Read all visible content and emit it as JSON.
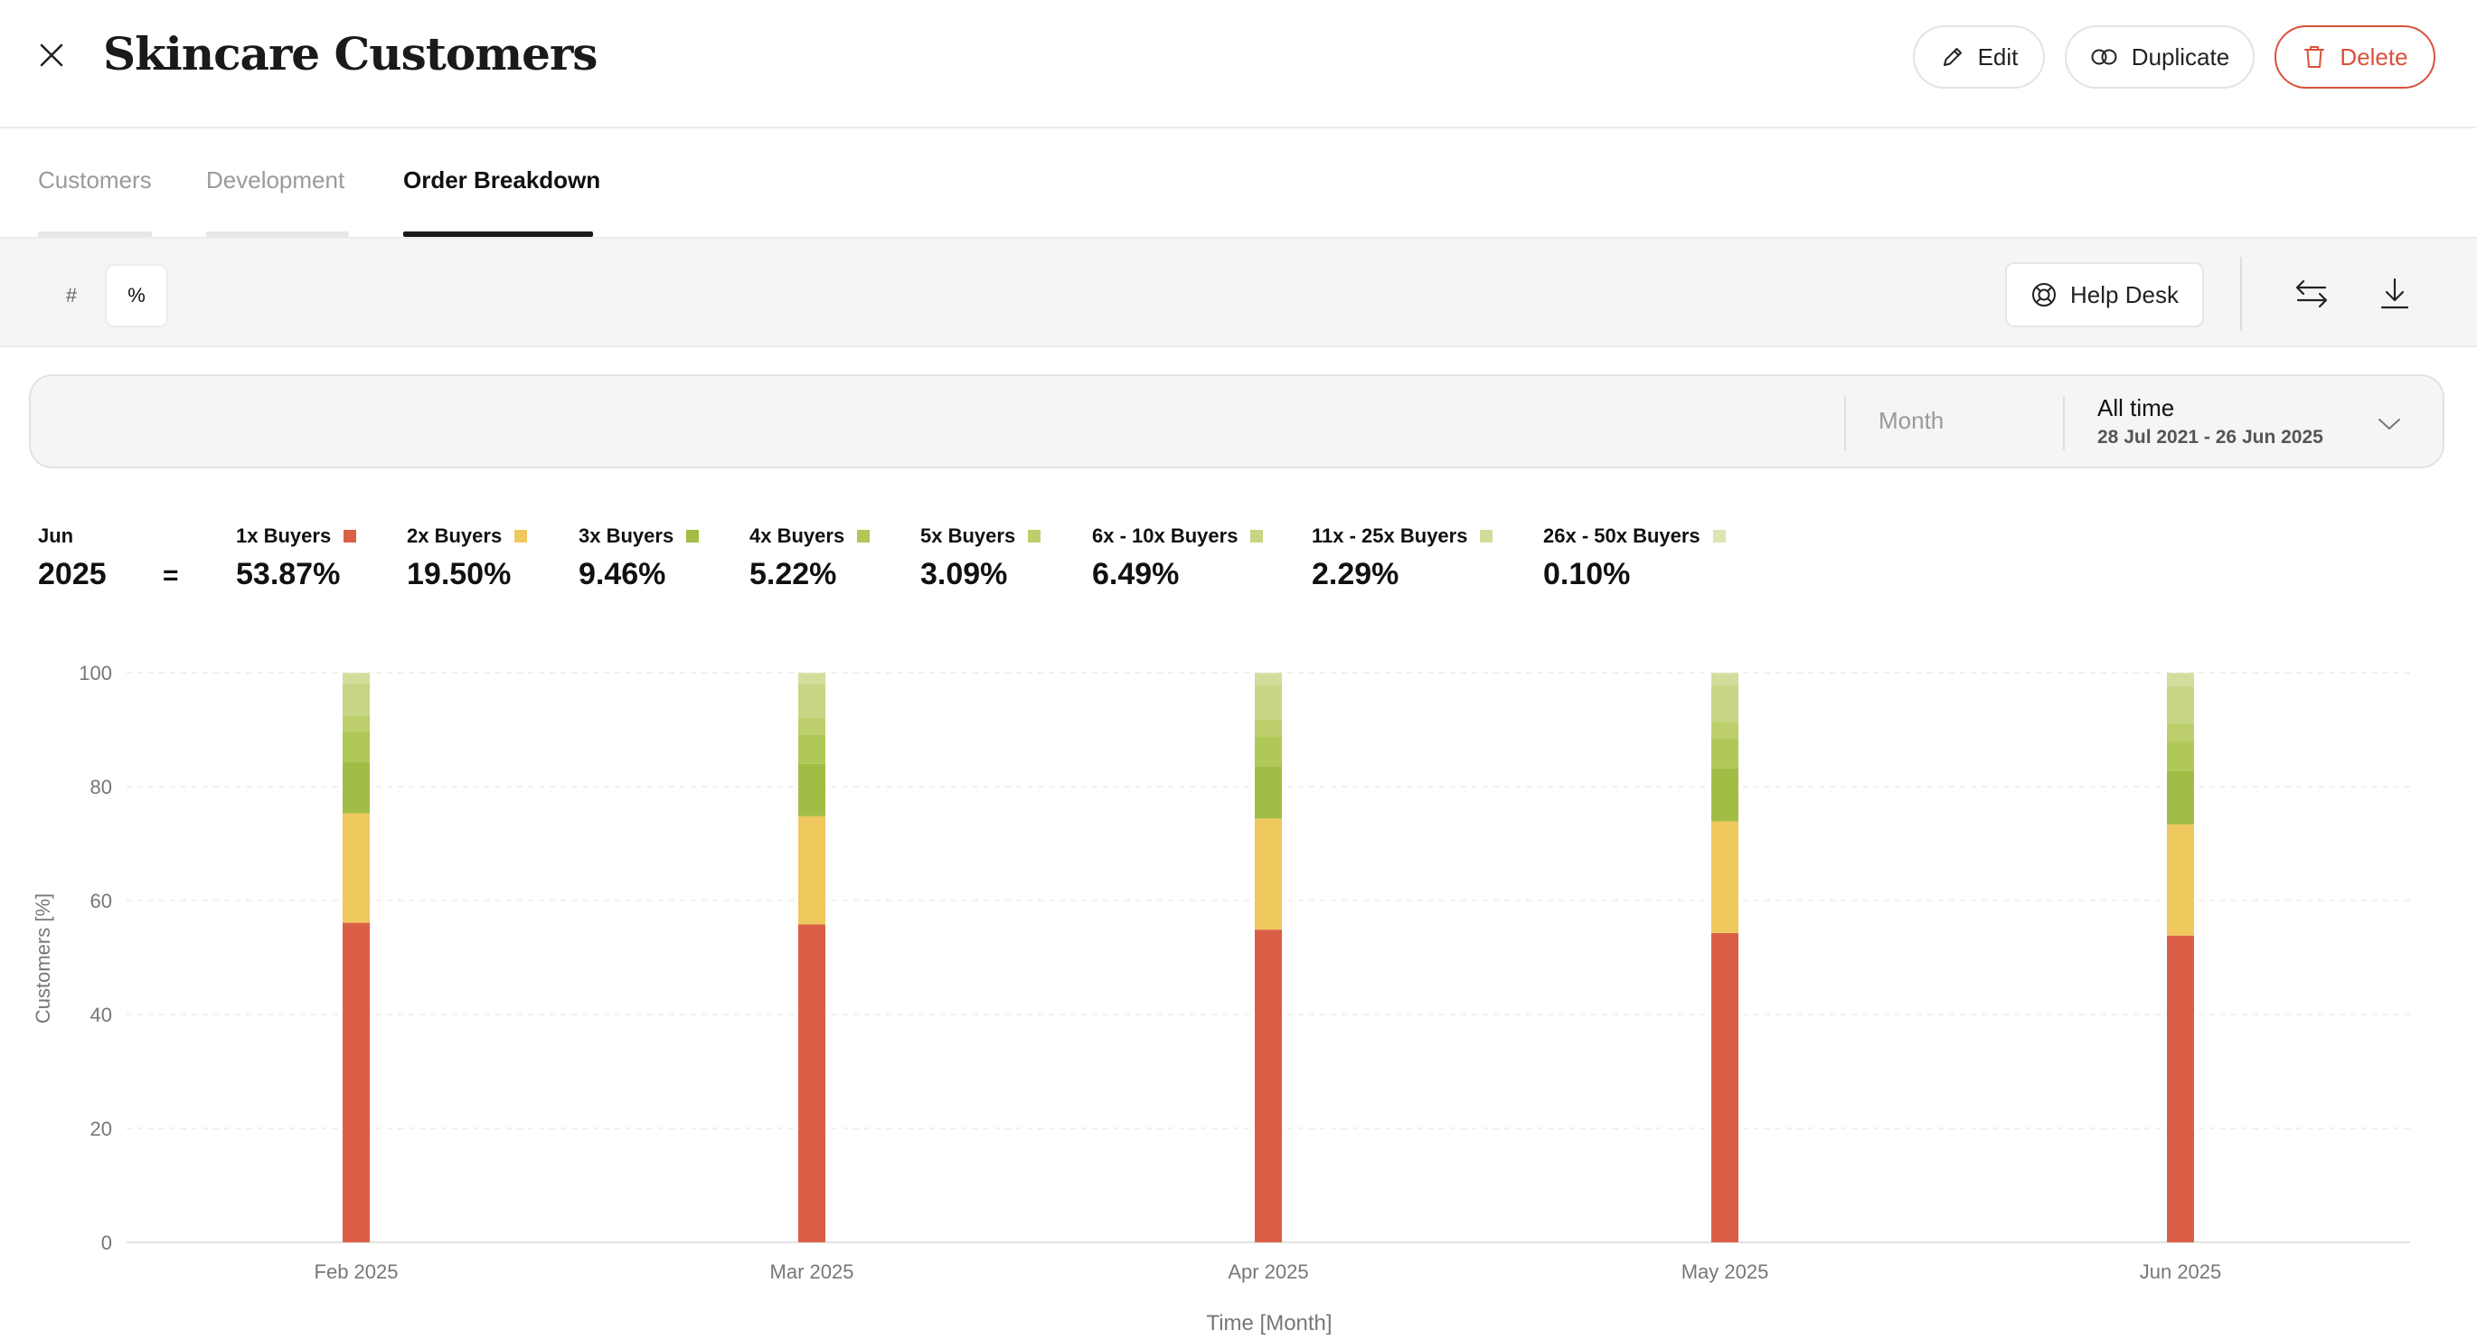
{
  "header": {
    "title": "Skincare Customers",
    "edit_label": "Edit",
    "duplicate_label": "Duplicate",
    "delete_label": "Delete",
    "icons": {
      "close": "close-icon",
      "edit": "pencil-icon",
      "duplicate": "duplicate-icon",
      "delete": "trash-icon"
    },
    "delete_color": "#d9513a"
  },
  "tabs": [
    {
      "label": "Customers",
      "active": false
    },
    {
      "label": "Development",
      "active": false
    },
    {
      "label": "Order Breakdown",
      "active": true
    }
  ],
  "toolbar": {
    "toggle_number": "#",
    "toggle_percent": "%",
    "active_toggle": "percent",
    "help_label": "Help Desk",
    "icons": {
      "help": "lifebuoy-icon",
      "swap": "swap-arrows-icon",
      "download": "download-icon"
    }
  },
  "filter": {
    "granularity": "Month",
    "range_title": "All time",
    "range_dates": "28 Jul 2021 - 26 Jun 2025"
  },
  "summary": {
    "month": "Jun",
    "year": "2025",
    "equals": "=",
    "items": [
      {
        "label": "1x Buyers",
        "value": "53.87%",
        "color": "#db5f47"
      },
      {
        "label": "2x Buyers",
        "value": "19.50%",
        "color": "#efc85e"
      },
      {
        "label": "3x Buyers",
        "value": "9.46%",
        "color": "#a2bd45"
      },
      {
        "label": "4x Buyers",
        "value": "5.22%",
        "color": "#b0c858"
      },
      {
        "label": "5x Buyers",
        "value": "3.09%",
        "color": "#bccf6c"
      },
      {
        "label": "6x - 10x Buyers",
        "value": "6.49%",
        "color": "#c7d684"
      },
      {
        "label": "11x - 25x Buyers",
        "value": "2.29%",
        "color": "#d1dd9b"
      },
      {
        "label": "26x - 50x Buyers",
        "value": "0.10%",
        "color": "#dde6b3"
      }
    ]
  },
  "chart_data": {
    "type": "bar",
    "stacked": true,
    "categories": [
      "Feb 2025",
      "Mar 2025",
      "Apr 2025",
      "May 2025",
      "Jun 2025"
    ],
    "ylabel": "Customers [%]",
    "xlabel": "Time [Month]",
    "ylim": [
      0,
      100
    ],
    "yticks": [
      0,
      20,
      40,
      60,
      80,
      100
    ],
    "grid": true,
    "series": [
      {
        "name": "1x Buyers",
        "color": "#db5f47",
        "values": [
          56.1,
          55.8,
          54.9,
          54.3,
          53.87
        ]
      },
      {
        "name": "2x Buyers",
        "color": "#efc85e",
        "values": [
          19.2,
          19.0,
          19.5,
          19.6,
          19.5
        ]
      },
      {
        "name": "3x Buyers",
        "color": "#a2bd45",
        "values": [
          9.1,
          9.2,
          9.2,
          9.3,
          9.46
        ]
      },
      {
        "name": "4x Buyers",
        "color": "#b0c858",
        "values": [
          5.2,
          5.1,
          5.2,
          5.2,
          5.22
        ]
      },
      {
        "name": "5x Buyers",
        "color": "#bccf6c",
        "values": [
          2.9,
          3.0,
          3.0,
          3.0,
          3.09
        ]
      },
      {
        "name": "6x - 10x Buyers",
        "color": "#c7d684",
        "values": [
          5.6,
          5.9,
          6.1,
          6.3,
          6.49
        ]
      },
      {
        "name": "11x - 25x Buyers",
        "color": "#d1dd9b",
        "values": [
          1.8,
          1.9,
          2.0,
          2.2,
          2.29
        ]
      },
      {
        "name": "26x - 50x Buyers",
        "color": "#dde6b3",
        "values": [
          0.1,
          0.1,
          0.1,
          0.1,
          0.1
        ]
      }
    ]
  }
}
